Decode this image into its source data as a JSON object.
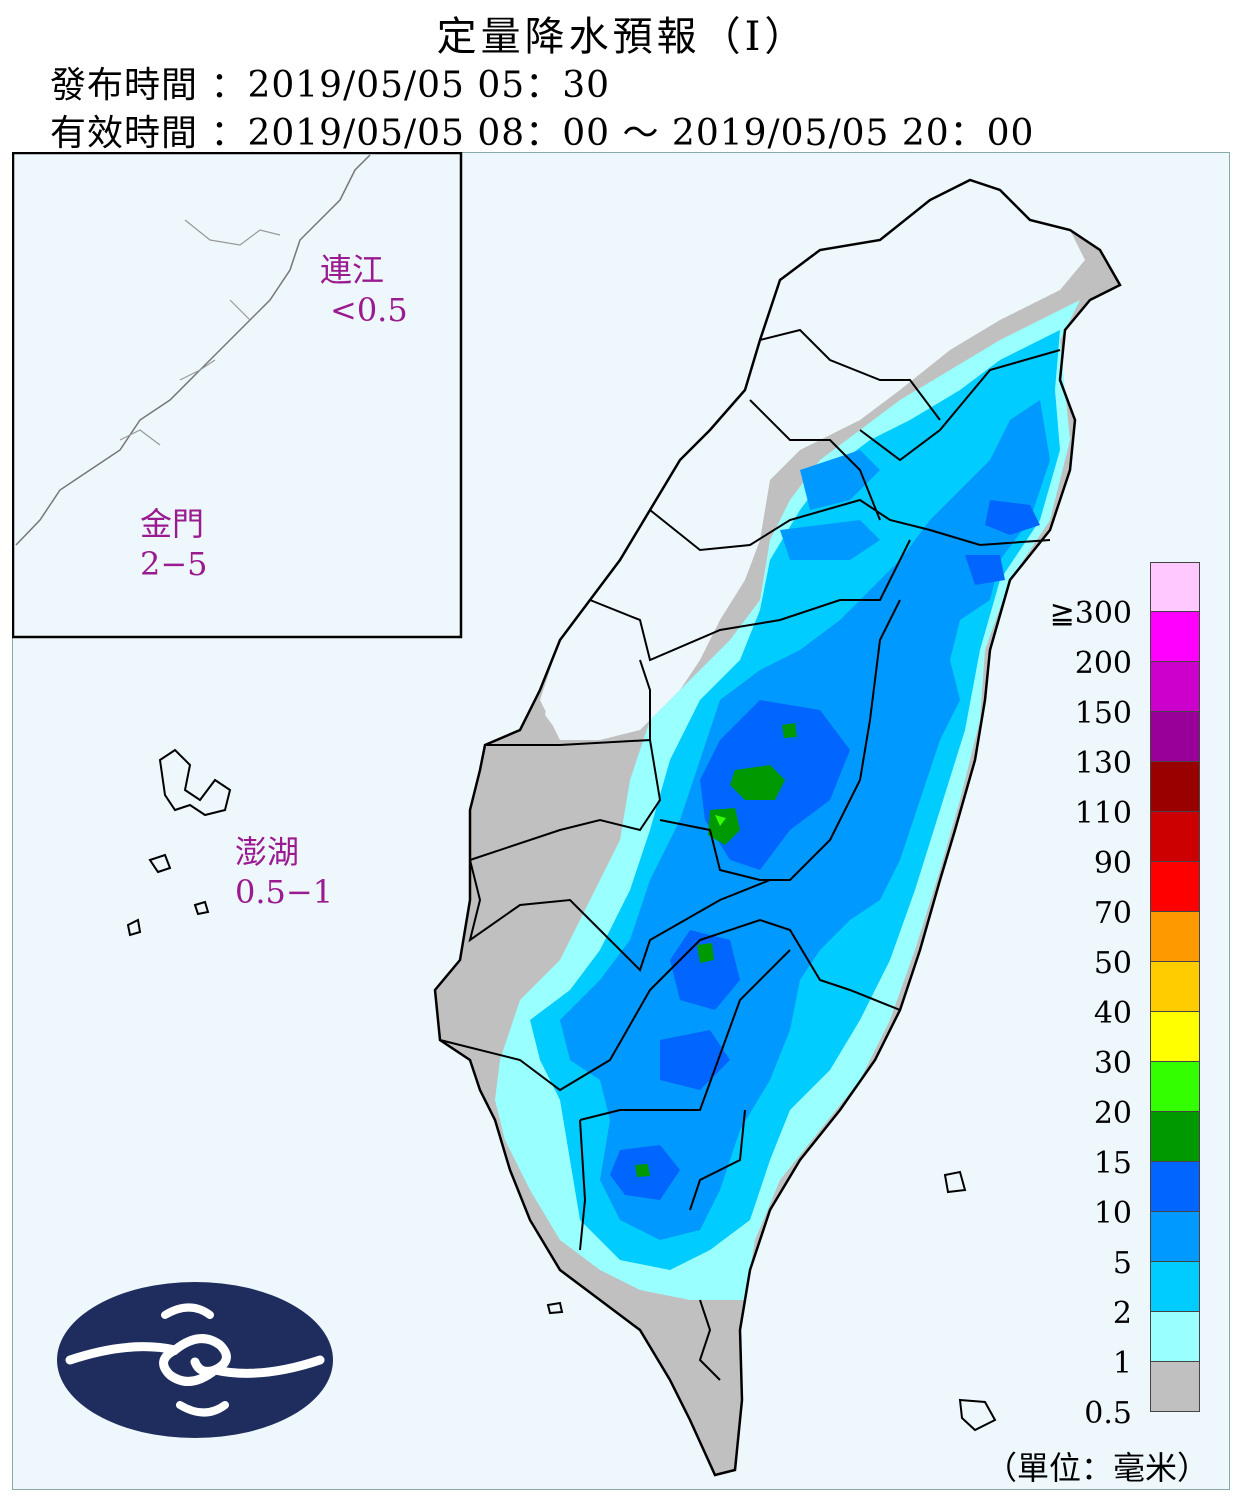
{
  "header": {
    "title": "定量降水預報（I）",
    "issue_label": "發布時間",
    "issue_value": "：2019/05/05 05：30",
    "valid_label": "有效時間",
    "valid_value": "：2019/05/05 08：00 〜 2019/05/05 20：00"
  },
  "islands": {
    "matsu": {
      "name": "連江",
      "value": "<0.5"
    },
    "kinmen": {
      "name": "金門",
      "value": "2−5"
    },
    "penghu": {
      "name": "澎湖",
      "value": "0.5−1"
    }
  },
  "legend": {
    "top_label": "≧300",
    "labels": [
      "200",
      "150",
      "130",
      "110",
      "90",
      "70",
      "50",
      "40",
      "30",
      "20",
      "15",
      "10",
      "5",
      "2",
      "1",
      "0.5"
    ],
    "colors": [
      "#ffc8ff",
      "#ff00ff",
      "#cc00cc",
      "#990099",
      "#990000",
      "#cc0000",
      "#ff0000",
      "#ff9900",
      "#ffcc00",
      "#ffff00",
      "#33ff00",
      "#009900",
      "#0066ff",
      "#0099ff",
      "#00ccff",
      "#99ffff",
      "#c0c0c0"
    ]
  },
  "unit": "（單位：毫米）",
  "colors": {
    "background": "#eef7fc",
    "logo": "#1e2d5e"
  },
  "icons": [
    "cwb-logo"
  ]
}
